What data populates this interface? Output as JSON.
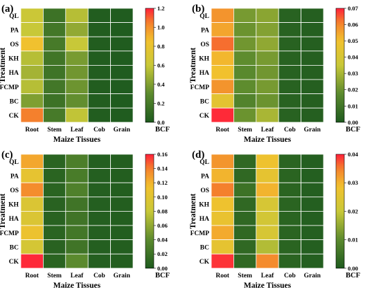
{
  "colorscale": {
    "stops": [
      {
        "t": 0.0,
        "color": "#1e5a1e"
      },
      {
        "t": 0.25,
        "color": "#5b8a2e"
      },
      {
        "t": 0.5,
        "color": "#c8c838"
      },
      {
        "t": 0.72,
        "color": "#f2c12e"
      },
      {
        "t": 0.88,
        "color": "#f47e2d"
      },
      {
        "t": 1.0,
        "color": "#ff1f3a"
      }
    ]
  },
  "chart_data": [
    {
      "type": "heatmap",
      "panel_label": "(a)",
      "xlabel": "Maize Tissues",
      "ylabel": "Treatment",
      "colorbar_label": "BCF",
      "x": [
        "Root",
        "Stem",
        "Leaf",
        "Cob",
        "Grain"
      ],
      "y": [
        "QL",
        "PA",
        "OS",
        "KH",
        "HA",
        "FCMP",
        "BC",
        "CK"
      ],
      "vmin": 0,
      "vmax": 1.2,
      "colorbar_ticks": [
        "0.0",
        "0.2",
        "0.4",
        "0.6",
        "0.8",
        "1.0",
        "1.2"
      ],
      "values": [
        [
          0.62,
          0.15,
          0.55,
          0.02,
          0.01
        ],
        [
          0.6,
          0.18,
          0.45,
          0.02,
          0.01
        ],
        [
          0.85,
          0.2,
          0.6,
          0.02,
          0.01
        ],
        [
          0.55,
          0.17,
          0.38,
          0.02,
          0.01
        ],
        [
          0.5,
          0.16,
          0.36,
          0.02,
          0.01
        ],
        [
          0.55,
          0.18,
          0.35,
          0.02,
          0.01
        ],
        [
          0.4,
          0.15,
          0.32,
          0.02,
          0.01
        ],
        [
          1.05,
          0.2,
          0.58,
          0.02,
          0.01
        ]
      ]
    },
    {
      "type": "heatmap",
      "panel_label": "(b)",
      "xlabel": "Maize Tissues",
      "ylabel": "Treatment",
      "colorbar_label": "BCF",
      "x": [
        "Root",
        "Stem",
        "Leaf",
        "Cob",
        "Grain"
      ],
      "y": [
        "QL",
        "PA",
        "OS",
        "KH",
        "HA",
        "FCMP",
        "BC",
        "CK"
      ],
      "vmin": 0,
      "vmax": 0.07,
      "colorbar_ticks": [
        "0.00",
        "0.01",
        "0.02",
        "0.03",
        "0.04",
        "0.05",
        "0.06",
        "0.07"
      ],
      "values": [
        [
          0.058,
          0.022,
          0.025,
          0.003,
          0.002
        ],
        [
          0.055,
          0.02,
          0.024,
          0.003,
          0.002
        ],
        [
          0.063,
          0.021,
          0.026,
          0.003,
          0.002
        ],
        [
          0.052,
          0.018,
          0.022,
          0.003,
          0.002
        ],
        [
          0.05,
          0.017,
          0.021,
          0.003,
          0.002
        ],
        [
          0.058,
          0.018,
          0.022,
          0.003,
          0.002
        ],
        [
          0.045,
          0.015,
          0.02,
          0.003,
          0.002
        ],
        [
          0.069,
          0.02,
          0.03,
          0.003,
          0.002
        ]
      ]
    },
    {
      "type": "heatmap",
      "panel_label": "(c)",
      "xlabel": "Maize Tissues",
      "ylabel": "Treatment",
      "colorbar_label": "BCF",
      "x": [
        "Root",
        "Stem",
        "Leaf",
        "Cob",
        "Grain"
      ],
      "y": [
        "QL",
        "PA",
        "OS",
        "KH",
        "HA",
        "FCMP",
        "BC",
        "CK"
      ],
      "vmin": 0,
      "vmax": 0.16,
      "colorbar_ticks": [
        "0.00",
        "0.02",
        "0.04",
        "0.06",
        "0.08",
        "0.10",
        "0.12",
        "0.14",
        "0.16"
      ],
      "values": [
        [
          0.125,
          0.008,
          0.03,
          0.004,
          0.003
        ],
        [
          0.105,
          0.008,
          0.028,
          0.004,
          0.003
        ],
        [
          0.135,
          0.008,
          0.032,
          0.004,
          0.003
        ],
        [
          0.095,
          0.007,
          0.022,
          0.004,
          0.003
        ],
        [
          0.095,
          0.007,
          0.022,
          0.004,
          0.003
        ],
        [
          0.11,
          0.008,
          0.024,
          0.004,
          0.003
        ],
        [
          0.09,
          0.007,
          0.022,
          0.004,
          0.003
        ],
        [
          0.158,
          0.008,
          0.04,
          0.004,
          0.003
        ]
      ]
    },
    {
      "type": "heatmap",
      "panel_label": "(d)",
      "xlabel": "Maize Tissues",
      "ylabel": "Treatment",
      "colorbar_label": "BCF",
      "x": [
        "Root",
        "Stem",
        "Leaf",
        "Cob",
        "Grain"
      ],
      "y": [
        "QL",
        "PA",
        "OS",
        "KH",
        "HA",
        "FCMP",
        "BC",
        "CK"
      ],
      "vmin": 0,
      "vmax": 0.04,
      "colorbar_ticks": [
        "0.00",
        "0.01",
        "0.02",
        "0.03",
        "0.04"
      ],
      "values": [
        [
          0.033,
          0.003,
          0.028,
          0.002,
          0.001
        ],
        [
          0.03,
          0.003,
          0.026,
          0.002,
          0.001
        ],
        [
          0.035,
          0.005,
          0.03,
          0.002,
          0.001
        ],
        [
          0.028,
          0.003,
          0.023,
          0.002,
          0.001
        ],
        [
          0.027,
          0.003,
          0.022,
          0.002,
          0.001
        ],
        [
          0.031,
          0.003,
          0.023,
          0.002,
          0.001
        ],
        [
          0.026,
          0.003,
          0.018,
          0.002,
          0.001
        ],
        [
          0.039,
          0.003,
          0.034,
          0.002,
          0.001
        ]
      ]
    }
  ]
}
